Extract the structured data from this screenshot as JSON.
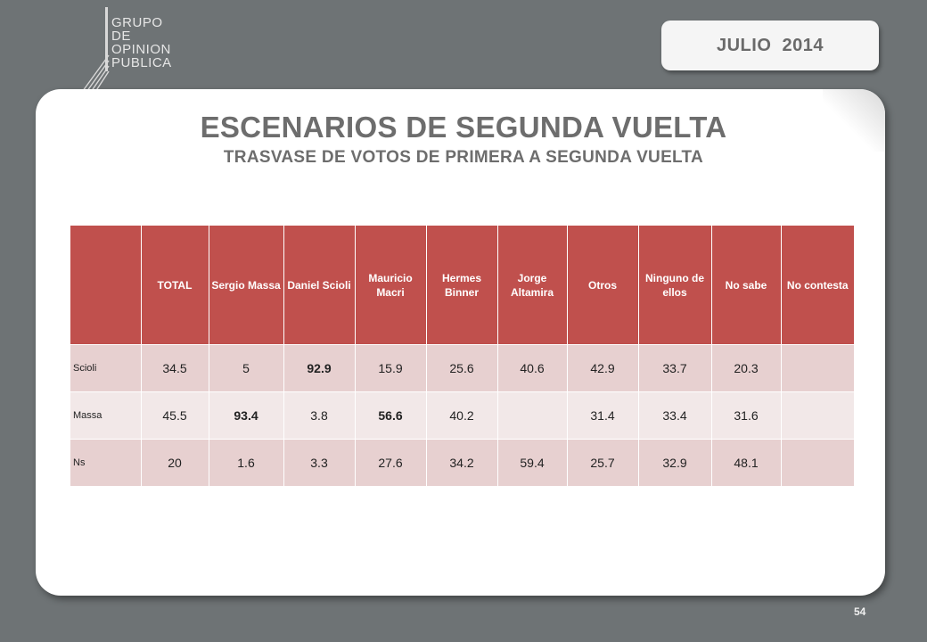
{
  "logo": {
    "lines": [
      "GRUPO",
      "DE",
      "OPINION",
      "PUBLICA"
    ]
  },
  "date_label": "JULIO  2014",
  "title": "ESCENARIOS DE SEGUNDA VUELTA",
  "subtitle": "TRASVASE DE VOTOS DE PRIMERA A SEGUNDA VUELTA",
  "table": {
    "headers": [
      "",
      "TOTAL",
      "Sergio Massa",
      "Daniel Scioli",
      "Mauricio Macri",
      "Hermes Binner",
      "Jorge Altamira",
      "Otros",
      "Ninguno de ellos",
      "No sabe",
      "No contesta"
    ],
    "rows": [
      {
        "label": "Scioli",
        "cells": [
          "34.5",
          "5",
          "92.9",
          "15.9",
          "25.6",
          "40.6",
          "42.9",
          "33.7",
          "20.3",
          ""
        ]
      },
      {
        "label": "Massa",
        "cells": [
          "45.5",
          "93.4",
          "3.8",
          "56.6",
          "40.2",
          "",
          "31.4",
          "33.4",
          "31.6",
          ""
        ]
      },
      {
        "label": "Ns",
        "cells": [
          "20",
          "1.6",
          "3.3",
          "27.6",
          "34.2",
          "59.4",
          "25.7",
          "32.9",
          "48.1",
          ""
        ]
      }
    ]
  },
  "page_number": "54"
}
